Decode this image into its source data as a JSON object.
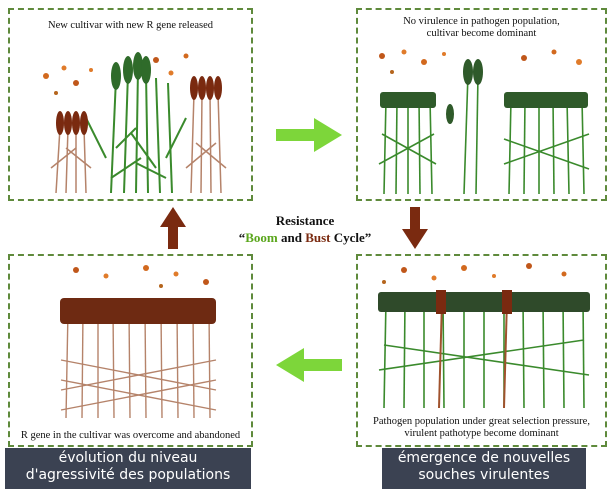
{
  "panels": {
    "top_left": {
      "text": "New cultivar with new R gene released"
    },
    "top_right": {
      "line1": "No virulence in pathogen population,",
      "line2": "cultivar become dominant"
    },
    "bottom_right": {
      "line1": "Pathogen population under great selection pressure,",
      "line2": "virulent pathotype become dominant"
    },
    "bottom_left": {
      "text": "R gene in the cultivar was overcome and abandoned"
    }
  },
  "center": {
    "line1": "Resistance",
    "quote_open": "“",
    "boom": "Boom",
    "and": " and ",
    "bust": "Bust",
    "cycle": " Cycle”"
  },
  "captions": {
    "left_line1": "évolution du niveau",
    "left_line2": "d'agressivité des populations",
    "right_line1": "émergence de nouvelles",
    "right_line2": "souches virulentes"
  },
  "colors": {
    "healthy_green": "#2f7d2a",
    "diseased_brown": "#7a2a10",
    "arrow_green": "#7dd63a",
    "arrow_brown": "#7a2a10",
    "caption_bg": "#3b4252",
    "border": "#5f8a3c"
  }
}
